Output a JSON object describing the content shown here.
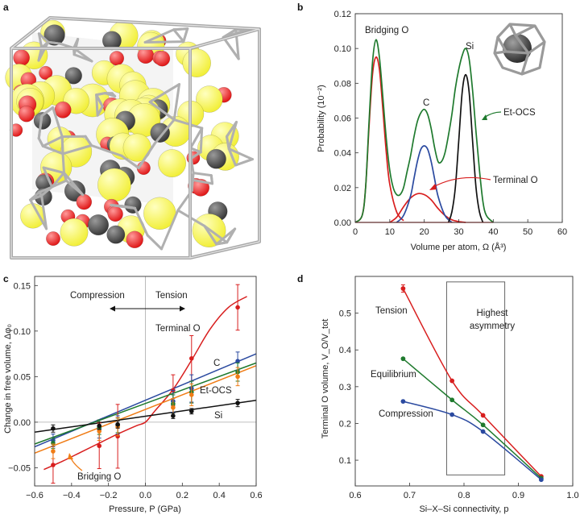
{
  "panels": {
    "a": "a",
    "b": "b",
    "c": "c",
    "d": "d"
  },
  "chart_data": [
    {
      "panel": "a",
      "type": "other",
      "colors": {
        "silicon": "#f2ef3a",
        "oxygen": "#e01818",
        "carbon": "#3a3a3a",
        "voronoi": "#b0b0b0"
      }
    },
    {
      "panel": "b",
      "type": "line",
      "xlabel": "Volume per atom, Ω (Å³)",
      "ylabel": "Probability (10⁻²)",
      "xlim": [
        0,
        60
      ],
      "ylim": [
        0,
        0.12
      ],
      "xticks": [
        0,
        10,
        20,
        30,
        40,
        50,
        60
      ],
      "yticks": [
        0.0,
        0.02,
        0.04,
        0.06,
        0.08,
        0.1,
        0.12
      ],
      "grid": false,
      "annotations": [
        "Bridging O",
        "C",
        "Si",
        "Et-OCS",
        "Terminal O"
      ],
      "series": [
        {
          "name": "Bridging O",
          "color": "#d81e1e",
          "x": [
            0,
            2,
            3,
            4,
            5,
            6,
            7,
            8,
            9,
            10,
            12,
            14
          ],
          "y": [
            0,
            0.004,
            0.02,
            0.055,
            0.085,
            0.095,
            0.088,
            0.065,
            0.04,
            0.022,
            0.006,
            0.001
          ]
        },
        {
          "name": "Terminal O",
          "color": "#d81e1e",
          "x": [
            10,
            12,
            14,
            16,
            18,
            20,
            22,
            24,
            26,
            28,
            30,
            32
          ],
          "y": [
            0.0,
            0.003,
            0.009,
            0.014,
            0.0165,
            0.016,
            0.013,
            0.008,
            0.004,
            0.0015,
            0.0005,
            0
          ]
        },
        {
          "name": "C",
          "color": "#2b4aa0",
          "x": [
            12,
            14,
            16,
            17,
            18,
            19,
            20,
            21,
            22,
            23,
            24,
            26,
            28
          ],
          "y": [
            0,
            0.004,
            0.015,
            0.025,
            0.035,
            0.042,
            0.044,
            0.042,
            0.035,
            0.025,
            0.015,
            0.004,
            0
          ]
        },
        {
          "name": "Si",
          "color": "#111111",
          "x": [
            27,
            28,
            29,
            30,
            31,
            32,
            33,
            34,
            35,
            36,
            37
          ],
          "y": [
            0,
            0.006,
            0.02,
            0.047,
            0.075,
            0.085,
            0.075,
            0.047,
            0.02,
            0.006,
            0
          ]
        },
        {
          "name": "Et-OCS",
          "color": "#1f7a2e",
          "x": [
            0,
            2,
            3,
            4,
            5,
            6,
            7,
            8,
            9,
            10,
            11,
            12,
            13,
            14,
            15,
            16,
            17,
            18,
            19,
            20,
            21,
            22,
            23,
            24,
            25,
            26,
            27,
            28,
            29,
            30,
            31,
            32,
            33,
            34,
            35,
            36,
            37,
            38,
            40
          ],
          "y": [
            0,
            0.004,
            0.02,
            0.058,
            0.092,
            0.105,
            0.095,
            0.072,
            0.048,
            0.03,
            0.02,
            0.016,
            0.016,
            0.02,
            0.029,
            0.038,
            0.049,
            0.058,
            0.063,
            0.065,
            0.062,
            0.054,
            0.043,
            0.035,
            0.035,
            0.04,
            0.05,
            0.062,
            0.077,
            0.088,
            0.096,
            0.1,
            0.094,
            0.076,
            0.052,
            0.03,
            0.012,
            0.004,
            0
          ]
        }
      ]
    },
    {
      "panel": "c",
      "type": "line",
      "xlabel": "Pressure, P (GPa)",
      "ylabel": "Change in free volume, Δφ₀",
      "xlim": [
        -0.6,
        0.6
      ],
      "ylim": [
        -0.07,
        0.16
      ],
      "xticks": [
        -0.6,
        -0.4,
        -0.2,
        0,
        0.2,
        0.4,
        0.6
      ],
      "yticks": [
        -0.05,
        0.0,
        0.05,
        0.1,
        0.15
      ],
      "grid": false,
      "annotations": [
        "Compression",
        "Tension",
        "Terminal O",
        "C",
        "Et-OCS",
        "Si",
        "Bridging O"
      ],
      "series": [
        {
          "name": "Terminal O",
          "color": "#d81e1e",
          "curve_x": [
            -0.55,
            -0.45,
            -0.35,
            -0.25,
            -0.15,
            -0.05,
            0,
            0.05,
            0.15,
            0.25,
            0.35,
            0.45,
            0.55
          ],
          "curve_y": [
            -0.052,
            -0.043,
            -0.033,
            -0.023,
            -0.013,
            -0.004,
            0.0,
            0.012,
            0.036,
            0.068,
            0.102,
            0.126,
            0.138
          ],
          "points": [
            {
              "x": -0.5,
              "y": -0.047,
              "err": 0.02
            },
            {
              "x": -0.25,
              "y": -0.026,
              "err": 0.025
            },
            {
              "x": -0.15,
              "y": -0.0155,
              "err": 0.035
            },
            {
              "x": 0.15,
              "y": 0.035,
              "err": 0.017
            },
            {
              "x": 0.25,
              "y": 0.07,
              "err": 0.025
            },
            {
              "x": 0.5,
              "y": 0.126,
              "err": 0.025
            }
          ]
        },
        {
          "name": "C",
          "color": "#2b4aa0",
          "curve_x": [
            -0.6,
            0.6
          ],
          "curve_y": [
            -0.027,
            0.075
          ],
          "points": [
            {
              "x": -0.5,
              "y": -0.02,
              "err": 0.007
            },
            {
              "x": -0.25,
              "y": -0.0075,
              "err": 0.01
            },
            {
              "x": -0.15,
              "y": -0.003,
              "err": 0.01
            },
            {
              "x": 0.15,
              "y": 0.023,
              "err": 0.012
            },
            {
              "x": 0.25,
              "y": 0.037,
              "err": 0.015
            },
            {
              "x": 0.5,
              "y": 0.067,
              "err": 0.01
            }
          ]
        },
        {
          "name": "Et-OCS",
          "color": "#1f7a2e",
          "curve_x": [
            -0.6,
            0.6
          ],
          "curve_y": [
            -0.024,
            0.065
          ],
          "points": [
            {
              "x": -0.5,
              "y": -0.023,
              "err": 0.006
            },
            {
              "x": -0.25,
              "y": -0.0055,
              "err": 0.008
            },
            {
              "x": -0.15,
              "y": -0.0035,
              "err": 0.008
            },
            {
              "x": 0.15,
              "y": 0.02,
              "err": 0.01
            },
            {
              "x": 0.25,
              "y": 0.033,
              "err": 0.012
            },
            {
              "x": 0.5,
              "y": 0.055,
              "err": 0.01
            }
          ]
        },
        {
          "name": "Bridging O",
          "color": "#f07c15",
          "curve_x": [
            -0.6,
            0.6
          ],
          "curve_y": [
            -0.034,
            0.062
          ],
          "points": [
            {
              "x": -0.5,
              "y": -0.032,
              "err": 0.008
            },
            {
              "x": -0.25,
              "y": -0.01,
              "err": 0.01
            },
            {
              "x": -0.15,
              "y": -0.005,
              "err": 0.01
            },
            {
              "x": 0.15,
              "y": 0.016,
              "err": 0.01
            },
            {
              "x": 0.25,
              "y": 0.03,
              "err": 0.012
            },
            {
              "x": 0.5,
              "y": 0.05,
              "err": 0.01
            }
          ]
        },
        {
          "name": "Si",
          "color": "#111111",
          "curve_x": [
            -0.6,
            0.6
          ],
          "curve_y": [
            -0.011,
            0.024
          ],
          "points": [
            {
              "x": -0.5,
              "y": -0.007,
              "err": 0.004
            },
            {
              "x": -0.25,
              "y": -0.004,
              "err": 0.004
            },
            {
              "x": -0.15,
              "y": -0.0025,
              "err": 0.004
            },
            {
              "x": 0.15,
              "y": 0.007,
              "err": 0.003
            },
            {
              "x": 0.25,
              "y": 0.012,
              "err": 0.003
            },
            {
              "x": 0.5,
              "y": 0.021,
              "err": 0.004
            }
          ]
        }
      ]
    },
    {
      "panel": "d",
      "type": "line",
      "xlabel": "Si–X–Si connectivity, p",
      "ylabel": "Terminal O volume, V_O/V_tot",
      "xlim": [
        0.6,
        1.0
      ],
      "ylim": [
        0.03,
        0.6
      ],
      "xticks": [
        0.6,
        0.7,
        0.8,
        0.9,
        1.0
      ],
      "yticks": [
        0.1,
        0.2,
        0.3,
        0.4,
        0.5
      ],
      "grid": false,
      "annotations": [
        "Tension",
        "Equilibrium",
        "Compression",
        "Highest asymmetry"
      ],
      "box": {
        "x0": 0.768,
        "x1": 0.875,
        "y0": 0.06,
        "y1": 0.585
      },
      "series": [
        {
          "name": "Tension",
          "color": "#d81e1e",
          "points": [
            {
              "x": 0.688,
              "y": 0.567,
              "err": 0.01
            },
            {
              "x": 0.778,
              "y": 0.316
            },
            {
              "x": 0.835,
              "y": 0.222
            },
            {
              "x": 0.942,
              "y": 0.056
            }
          ]
        },
        {
          "name": "Equilibrium",
          "color": "#1f7a2e",
          "points": [
            {
              "x": 0.688,
              "y": 0.376
            },
            {
              "x": 0.778,
              "y": 0.264
            },
            {
              "x": 0.835,
              "y": 0.196
            },
            {
              "x": 0.942,
              "y": 0.051
            }
          ]
        },
        {
          "name": "Compression",
          "color": "#2b4aa0",
          "points": [
            {
              "x": 0.688,
              "y": 0.26
            },
            {
              "x": 0.778,
              "y": 0.224
            },
            {
              "x": 0.835,
              "y": 0.178
            },
            {
              "x": 0.942,
              "y": 0.047
            }
          ]
        }
      ]
    }
  ]
}
